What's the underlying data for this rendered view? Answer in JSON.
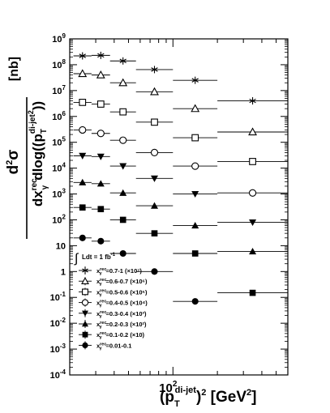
{
  "chart_data": {
    "type": "scatter",
    "ylabel_top": "d",
    "ylabel_top_sup": "2",
    "ylabel_sigma": "σ",
    "ylabel_bottom": "dx",
    "ylabel_gamma_sub": "γ",
    "ylabel_rec_sup": "rec",
    "ylabel_dlog": "dlog((p",
    "ylabel_T_sub": "T",
    "ylabel_dijet_sup": "di-jet",
    "ylabel_2sup": "2",
    "ylabel_close": "))",
    "ylabel_unit": "[nb]",
    "xlabel_open": "(p",
    "xlabel_T_sub": "T",
    "xlabel_dijet_sup": "di-jet",
    "xlabel_close": ")",
    "xlabel_2sup": "2",
    "xlabel_unit_open": " [GeV",
    "xlabel_unit_2sup": "2",
    "xlabel_unit_close": "]",
    "x_scale": "log",
    "y_scale": "log",
    "ylim": [
      0.0001,
      1000000000
    ],
    "yticks": [
      {
        "value": 1000000000.0,
        "label": "10",
        "exp": "9"
      },
      {
        "value": 100000000.0,
        "label": "10",
        "exp": "8"
      },
      {
        "value": 10000000.0,
        "label": "10",
        "exp": "7"
      },
      {
        "value": 1000000.0,
        "label": "10",
        "exp": "6"
      },
      {
        "value": 100000.0,
        "label": "10",
        "exp": "5"
      },
      {
        "value": 10000.0,
        "label": "10",
        "exp": "4"
      },
      {
        "value": 1000.0,
        "label": "10",
        "exp": "3"
      },
      {
        "value": 100.0,
        "label": "10",
        "exp": "2"
      },
      {
        "value": 10,
        "label": "10",
        "exp": ""
      },
      {
        "value": 1,
        "label": "1",
        "exp": ""
      },
      {
        "value": 0.1,
        "label": "10",
        "exp": "-1"
      },
      {
        "value": 0.01,
        "label": "10",
        "exp": "-2"
      },
      {
        "value": 0.001,
        "label": "10",
        "exp": "-3"
      },
      {
        "value": 0.0001,
        "label": "10",
        "exp": "-4"
      }
    ],
    "xticks": [
      {
        "value": 100,
        "label": "10",
        "exp": "2"
      }
    ],
    "bins": [
      [
        21.2,
        28.1
      ],
      [
        28.1,
        37.5
      ],
      [
        37.5,
        56.2
      ],
      [
        56.2,
        100
      ],
      [
        100,
        200
      ],
      [
        200,
        600
      ]
    ],
    "lumi_text": "Ldt = 1 fb",
    "lumi_sup": "-1",
    "legend_var": "x",
    "legend_var_sup": "rec",
    "legend_var_sub": "γ",
    "series": [
      {
        "marker": "star",
        "label": "=0.7-1 (×10⁷)",
        "values": [
          220000000.0,
          230000000.0,
          140000000.0,
          65000000.0,
          25000000.0,
          4000000.0
        ]
      },
      {
        "marker": "triangle-open",
        "label": "=0.6-0.7 (×10⁶)",
        "values": [
          45000000.0,
          40000000.0,
          20000000.0,
          9000000.0,
          2000000.0,
          250000.0
        ]
      },
      {
        "marker": "square-open",
        "label": "=0.5-0.6 (×10⁵)",
        "values": [
          3500000.0,
          3000000.0,
          1500000.0,
          600000.0,
          150000.0,
          18000.0
        ]
      },
      {
        "marker": "circle-open",
        "label": "=0.4-0.5 (×10⁴)",
        "values": [
          300000.0,
          220000.0,
          120000.0,
          40000.0,
          12000.0,
          1100.0
        ]
      },
      {
        "marker": "triangle-down",
        "label": "=0.3-0.4 (×10³)",
        "values": [
          30000.0,
          28000.0,
          12000.0,
          4000.0,
          1000.0,
          80
        ]
      },
      {
        "marker": "triangle",
        "label": "=0.2-0.3 (×10²)",
        "values": [
          2800.0,
          2500.0,
          1100.0,
          350.0,
          60,
          6
        ]
      },
      {
        "marker": "square",
        "label": "=0.1-0.2 (×10)",
        "values": [
          300,
          260,
          100,
          30,
          5,
          0.15
        ]
      },
      {
        "marker": "circle",
        "label": "=0.01-0.1",
        "values": [
          20,
          15,
          5,
          1,
          0.07,
          null
        ]
      }
    ]
  }
}
